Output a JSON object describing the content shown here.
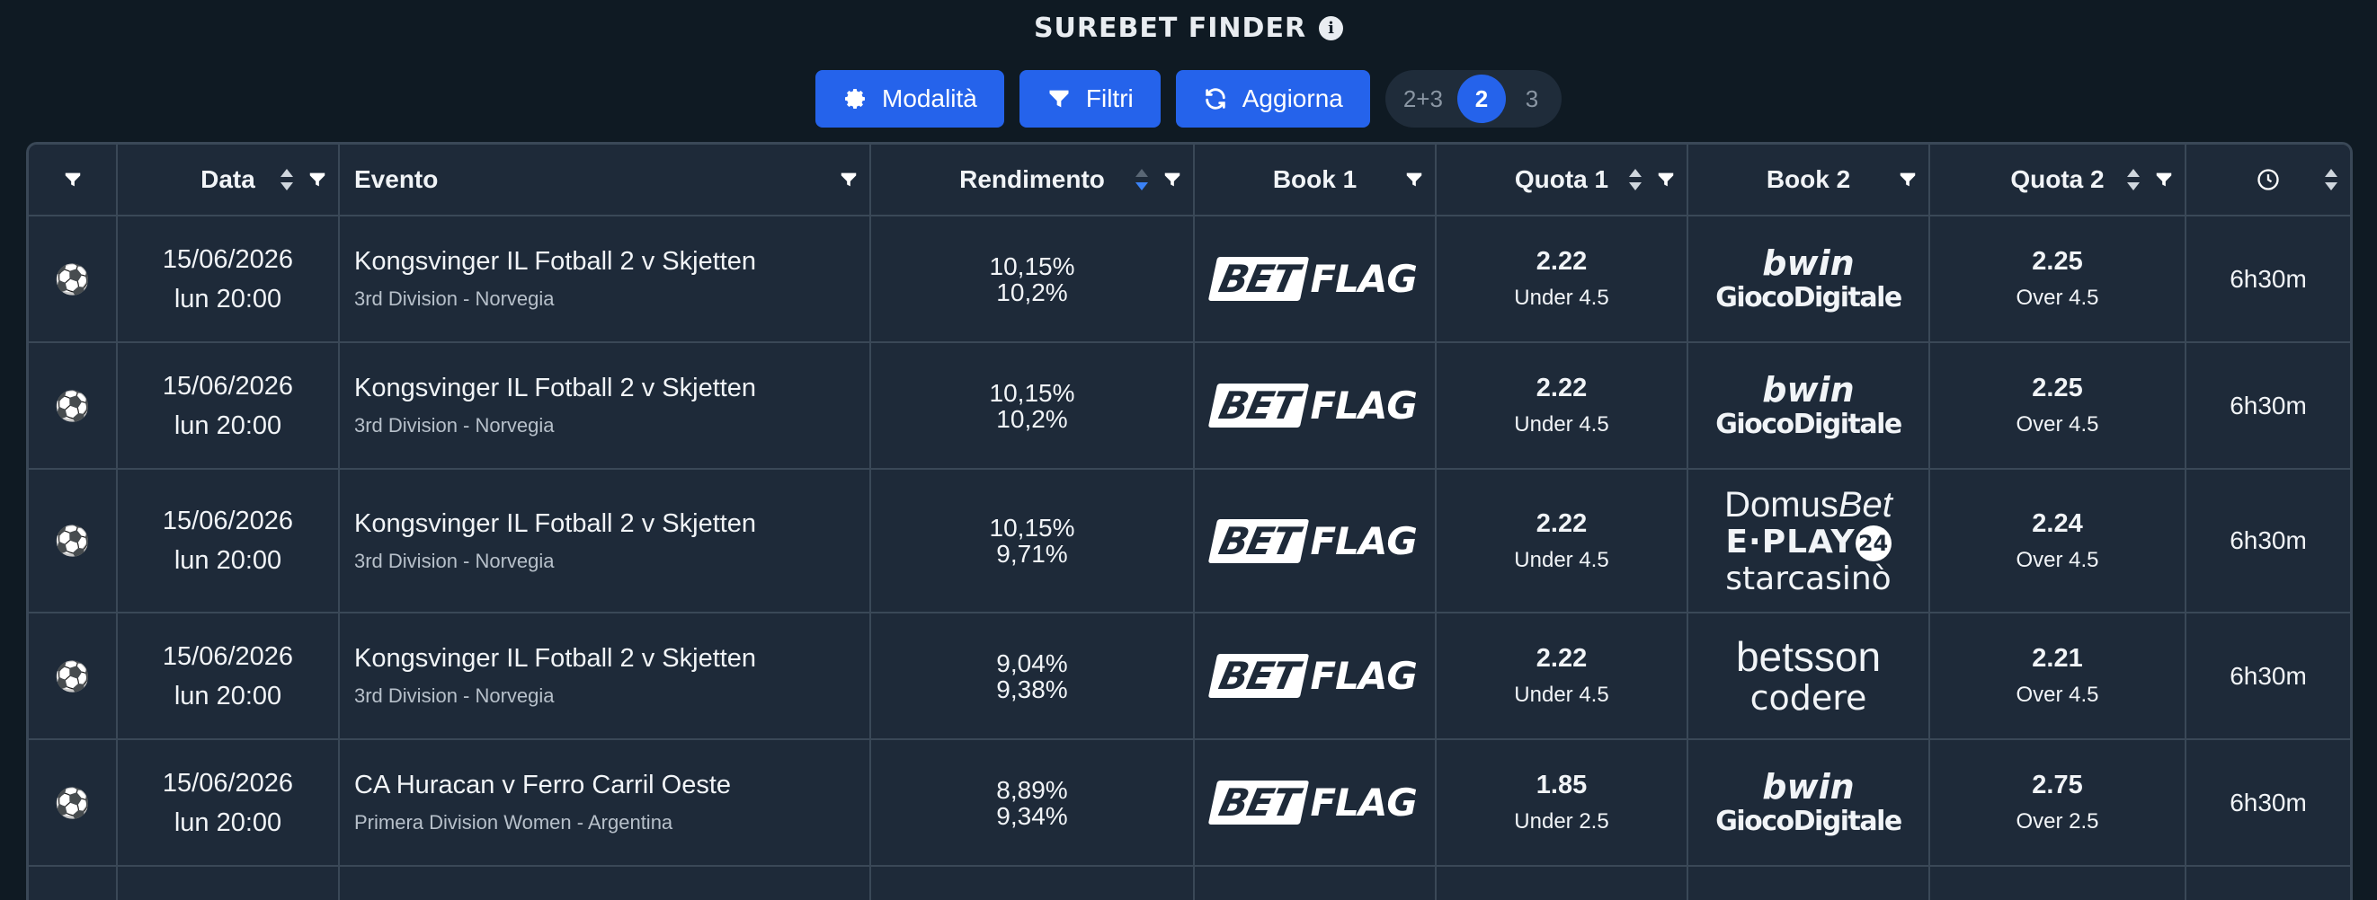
{
  "header": {
    "title": "SUREBET FINDER"
  },
  "toolbar": {
    "modalita_label": "Modalità",
    "filtri_label": "Filtri",
    "aggiorna_label": "Aggiorna",
    "segments": [
      "2+3",
      "2",
      "3"
    ],
    "active_segment": "2"
  },
  "table": {
    "columns": {
      "data": "Data",
      "evento": "Evento",
      "rendimento": "Rendimento",
      "book1": "Book 1",
      "quota1": "Quota 1",
      "book2": "Book 2",
      "quota2": "Quota 2"
    },
    "rows": [
      {
        "date": "15/06/2026",
        "time": "lun 20:00",
        "event": "Kongsvinger IL Fotball 2 v Skjetten",
        "league": "3rd Division - Norvegia",
        "rend1": "10,15%",
        "rend2": "10,2%",
        "book1": "BetFlag",
        "odd1": "2.22",
        "market1": "Under 4.5",
        "book2_a": "bwin",
        "book2_b": "GiocoDigitale",
        "odd2": "2.25",
        "market2": "Over 4.5",
        "remaining": "6h30m"
      },
      {
        "date": "15/06/2026",
        "time": "lun 20:00",
        "event": "Kongsvinger IL Fotball 2 v Skjetten",
        "league": "3rd Division - Norvegia",
        "rend1": "10,15%",
        "rend2": "10,2%",
        "book1": "BetFlag",
        "odd1": "2.22",
        "market1": "Under 4.5",
        "book2_a": "bwin",
        "book2_b": "GiocoDigitale",
        "odd2": "2.25",
        "market2": "Over 4.5",
        "remaining": "6h30m"
      },
      {
        "date": "15/06/2026",
        "time": "lun 20:00",
        "event": "Kongsvinger IL Fotball 2 v Skjetten",
        "league": "3rd Division - Norvegia",
        "rend1": "10,15%",
        "rend2": "9,71%",
        "book1": "BetFlag",
        "odd1": "2.22",
        "market1": "Under 4.5",
        "book2_a": "DomusBet",
        "book2_b": "E·PLAY24",
        "book2_c": "starcasinò",
        "odd2": "2.24",
        "market2": "Over 4.5",
        "remaining": "6h30m"
      },
      {
        "date": "15/06/2026",
        "time": "lun 20:00",
        "event": "Kongsvinger IL Fotball 2 v Skjetten",
        "league": "3rd Division - Norvegia",
        "rend1": "9,04%",
        "rend2": "9,38%",
        "book1": "BetFlag",
        "odd1": "2.22",
        "market1": "Under 4.5",
        "book2_a": "betsson",
        "book2_b": "codere",
        "odd2": "2.21",
        "market2": "Over 4.5",
        "remaining": "6h30m"
      },
      {
        "date": "15/06/2026",
        "time": "lun 20:00",
        "event": "CA Huracan v Ferro Carril Oeste",
        "league": "Primera Division Women - Argentina",
        "rend1": "8,89%",
        "rend2": "9,34%",
        "book1": "BetFlag",
        "odd1": "1.85",
        "market1": "Under 2.5",
        "book2_a": "bwin",
        "book2_b": "GiocoDigitale",
        "odd2": "2.75",
        "market2": "Over 2.5",
        "remaining": "6h30m"
      }
    ]
  },
  "colors": {
    "accent": "#2563eb",
    "background": "#0f1a23",
    "table_bg": "#1e2a39",
    "border": "#3a4857"
  },
  "icons": [
    "info-icon",
    "gear-icon",
    "filter-icon",
    "refresh-icon",
    "sort-icon",
    "clock-icon",
    "soccer-ball-icon"
  ]
}
